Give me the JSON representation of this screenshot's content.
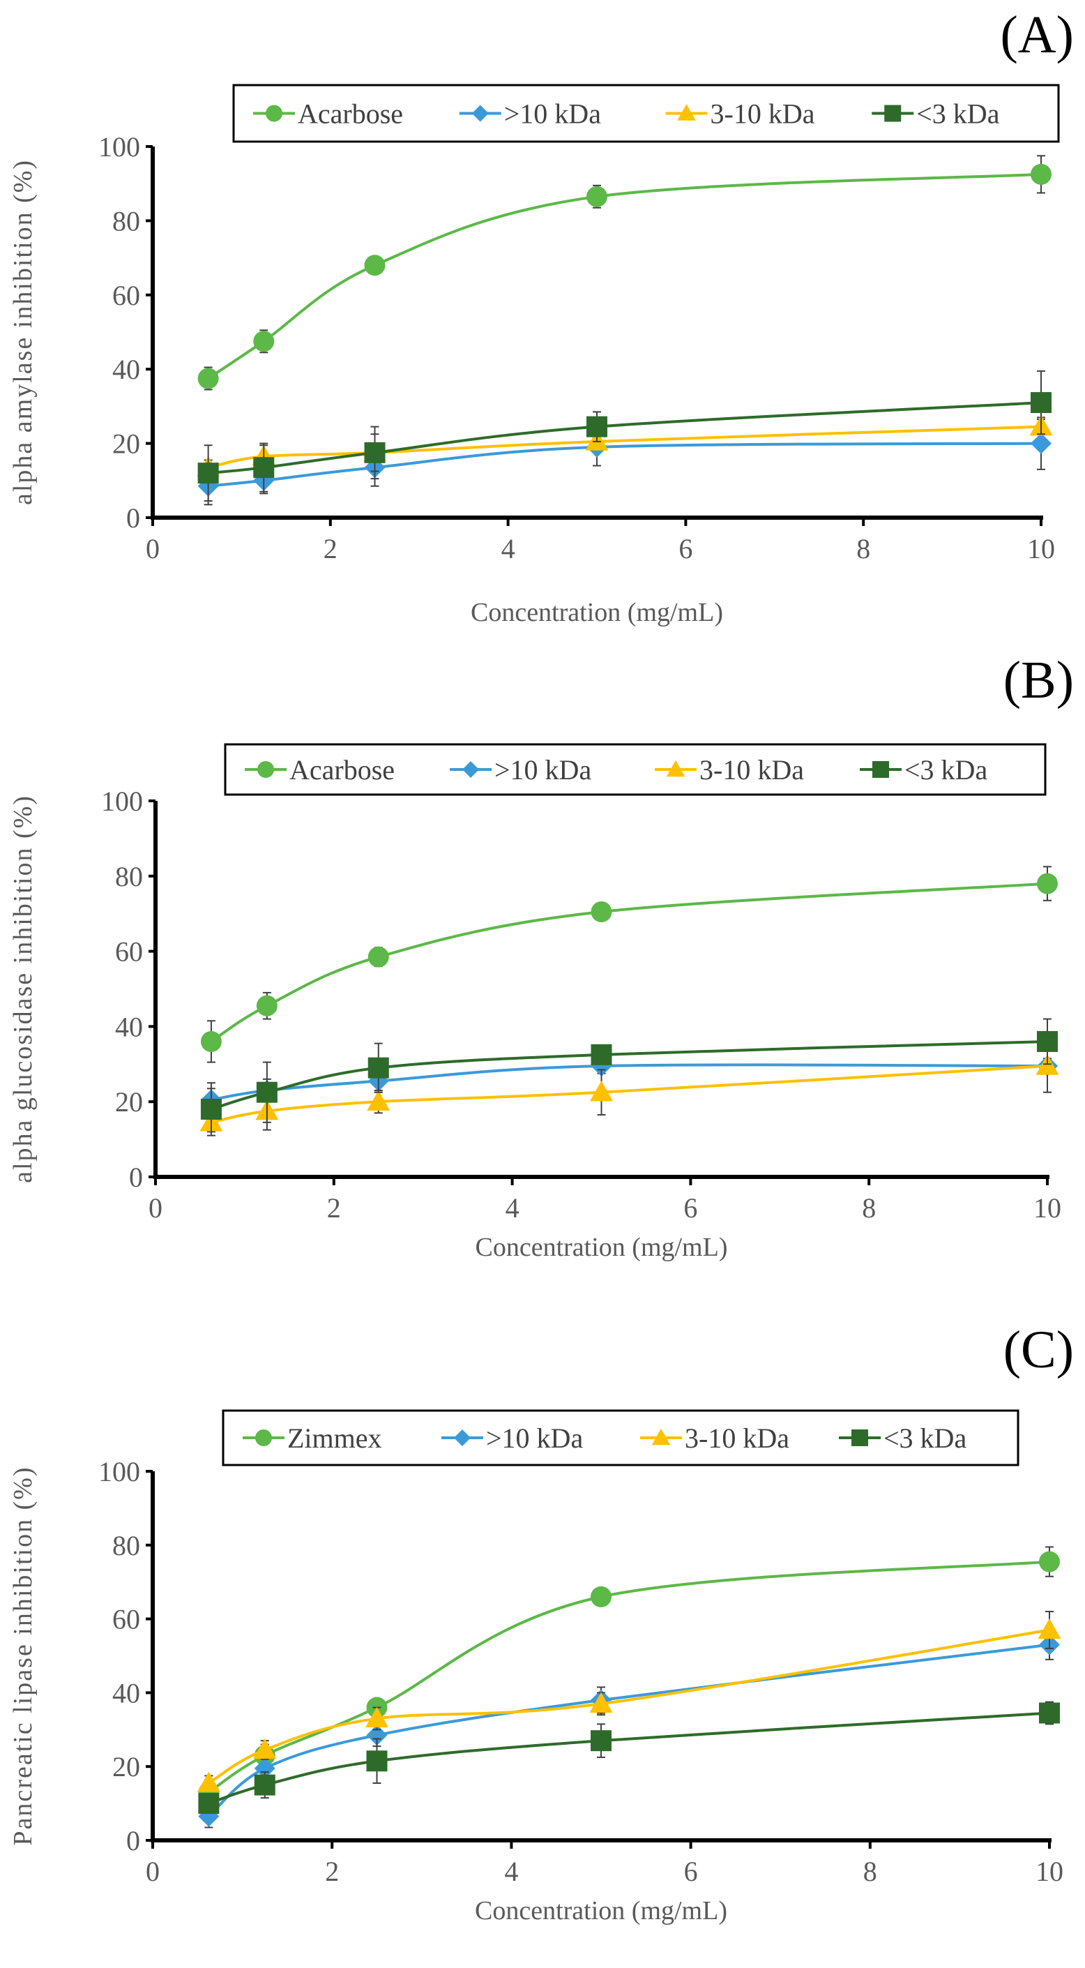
{
  "colors": {
    "s0": "#5cb847",
    "s1": "#3a9ad9",
    "s2": "#ffc000",
    "s3": "#2e6b2a",
    "axis": "#000000",
    "error": "#404040"
  },
  "chart_data": [
    {
      "type": "line",
      "panel_label": "(A)",
      "xlabel": "Concentration (mg/mL)",
      "ylabel": "alpha amylase inhibition (%)",
      "xlim": [
        0,
        10
      ],
      "ylim": [
        0,
        100
      ],
      "xticks": [
        "0",
        "2",
        "4",
        "6",
        "8",
        "10"
      ],
      "yticks": [
        "0",
        "20",
        "40",
        "60",
        "80",
        "100"
      ],
      "legend": "top",
      "x": [
        0.625,
        1.25,
        2.5,
        5,
        10
      ],
      "series": [
        {
          "name": "Acarbose",
          "marker": "circle",
          "values": [
            37.5,
            47.5,
            68,
            86.5,
            92.5
          ],
          "errors": [
            3,
            3,
            1,
            3,
            5
          ]
        },
        {
          "name": ">10 kDa",
          "marker": "diamond",
          "values": [
            8.5,
            10,
            13.5,
            19,
            20
          ],
          "errors": [
            5,
            3.5,
            5,
            5,
            7
          ]
        },
        {
          "name": "3-10 kDa",
          "marker": "triangle",
          "values": [
            13.5,
            16.5,
            17.5,
            20.5,
            24.5
          ],
          "errors": [
            2,
            3,
            5,
            1,
            2
          ]
        },
        {
          "name": "<3 kDa",
          "marker": "square",
          "values": [
            12,
            13.5,
            17.5,
            24.5,
            31
          ],
          "errors": [
            7.5,
            6.5,
            7,
            4,
            8.5
          ]
        }
      ]
    },
    {
      "type": "line",
      "panel_label": "(B)",
      "xlabel": "Concentration (mg/mL)",
      "ylabel": "alpha glucosidase inhibition (%)",
      "xlim": [
        0,
        10
      ],
      "ylim": [
        0,
        100
      ],
      "xticks": [
        "0",
        "2",
        "4",
        "6",
        "8",
        "10"
      ],
      "yticks": [
        "0",
        "20",
        "40",
        "60",
        "80",
        "100"
      ],
      "legend": "top",
      "x": [
        0.625,
        1.25,
        2.5,
        5,
        10
      ],
      "series": [
        {
          "name": "Acarbose",
          "marker": "circle",
          "values": [
            36,
            45.5,
            58.5,
            70.5,
            78
          ],
          "errors": [
            5.5,
            3.5,
            2.5,
            1,
            4.5
          ]
        },
        {
          "name": ">10 kDa",
          "marker": "diamond",
          "values": [
            20.5,
            23,
            25.5,
            29.5,
            29.5
          ],
          "errors": [
            3,
            3,
            3,
            2,
            2
          ]
        },
        {
          "name": "3-10 kDa",
          "marker": "triangle",
          "values": [
            14.5,
            17.5,
            20,
            22.5,
            29.5
          ],
          "errors": [
            2.5,
            5,
            3,
            6,
            7
          ]
        },
        {
          "name": "<3 kDa",
          "marker": "square",
          "values": [
            18,
            22.5,
            29,
            32.5,
            36
          ],
          "errors": [
            7,
            8,
            6.5,
            2,
            6
          ]
        }
      ]
    },
    {
      "type": "line",
      "panel_label": "(C)",
      "xlabel": "Concentration (mg/mL)",
      "ylabel": "Pancreatic lipase inhibition (%)",
      "xlim": [
        0,
        10
      ],
      "ylim": [
        0,
        100
      ],
      "xticks": [
        "0",
        "2",
        "4",
        "6",
        "8",
        "10"
      ],
      "yticks": [
        "0",
        "20",
        "40",
        "60",
        "80",
        "100"
      ],
      "legend": "top",
      "x": [
        0.625,
        1.25,
        2.5,
        5,
        10
      ],
      "series": [
        {
          "name": "Zimmex",
          "marker": "circle",
          "values": [
            13,
            23,
            36,
            66,
            75.5
          ],
          "errors": [
            2,
            3,
            2,
            1,
            4
          ]
        },
        {
          "name": ">10 kDa",
          "marker": "diamond",
          "values": [
            6.5,
            19.5,
            28.5,
            38,
            53
          ],
          "errors": [
            3,
            3,
            3,
            3.5,
            4
          ]
        },
        {
          "name": "3-10 kDa",
          "marker": "triangle",
          "values": [
            15.5,
            24.5,
            33,
            37,
            57
          ],
          "errors": [
            2,
            2.5,
            3,
            3,
            5
          ]
        },
        {
          "name": "<3 kDa",
          "marker": "square",
          "values": [
            10,
            15,
            21.5,
            27,
            34.5
          ],
          "errors": [
            2,
            3.5,
            6,
            4.5,
            3
          ]
        }
      ]
    }
  ]
}
